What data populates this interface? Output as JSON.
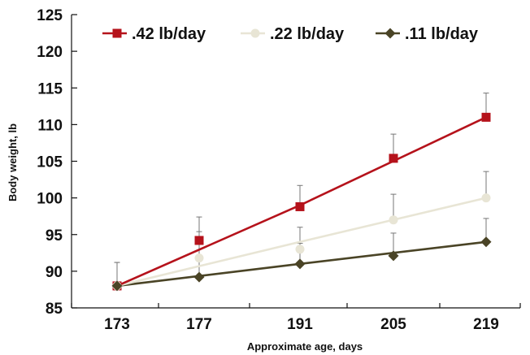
{
  "chart_data": {
    "type": "line",
    "title": "",
    "xlabel": "Approximate age, days",
    "ylabel": "Body weight, lb",
    "categories": [
      "173",
      "177",
      "191",
      "205",
      "219"
    ],
    "ylim": [
      85,
      125
    ],
    "yticks": [
      85,
      90,
      95,
      100,
      105,
      110,
      115,
      120,
      125
    ],
    "grid": false,
    "legend_position": "top",
    "series": [
      {
        "name": ".42 lb/day",
        "color": "#b5121b",
        "marker": "square",
        "points": [
          88,
          94.2,
          98.8,
          105.4,
          111
        ],
        "line": [
          88,
          99,
          111
        ],
        "error": [
          3.2,
          3.2,
          2.9,
          3.3,
          3.3
        ]
      },
      {
        "name": ".22 lb/day",
        "color": "#e8e5d5",
        "marker": "circle",
        "points": [
          88,
          91.8,
          93,
          97,
          100
        ],
        "line": [
          88,
          94,
          100
        ],
        "error": [
          3.2,
          3.6,
          3.0,
          3.5,
          3.6
        ]
      },
      {
        "name": ".11 lb/day",
        "color": "#4a4426",
        "marker": "diamond",
        "points": [
          88,
          89.2,
          91,
          92.1,
          94
        ],
        "line": [
          88,
          91,
          94
        ],
        "error": [
          3.2,
          3.0,
          2.8,
          3.1,
          3.2
        ]
      }
    ]
  }
}
